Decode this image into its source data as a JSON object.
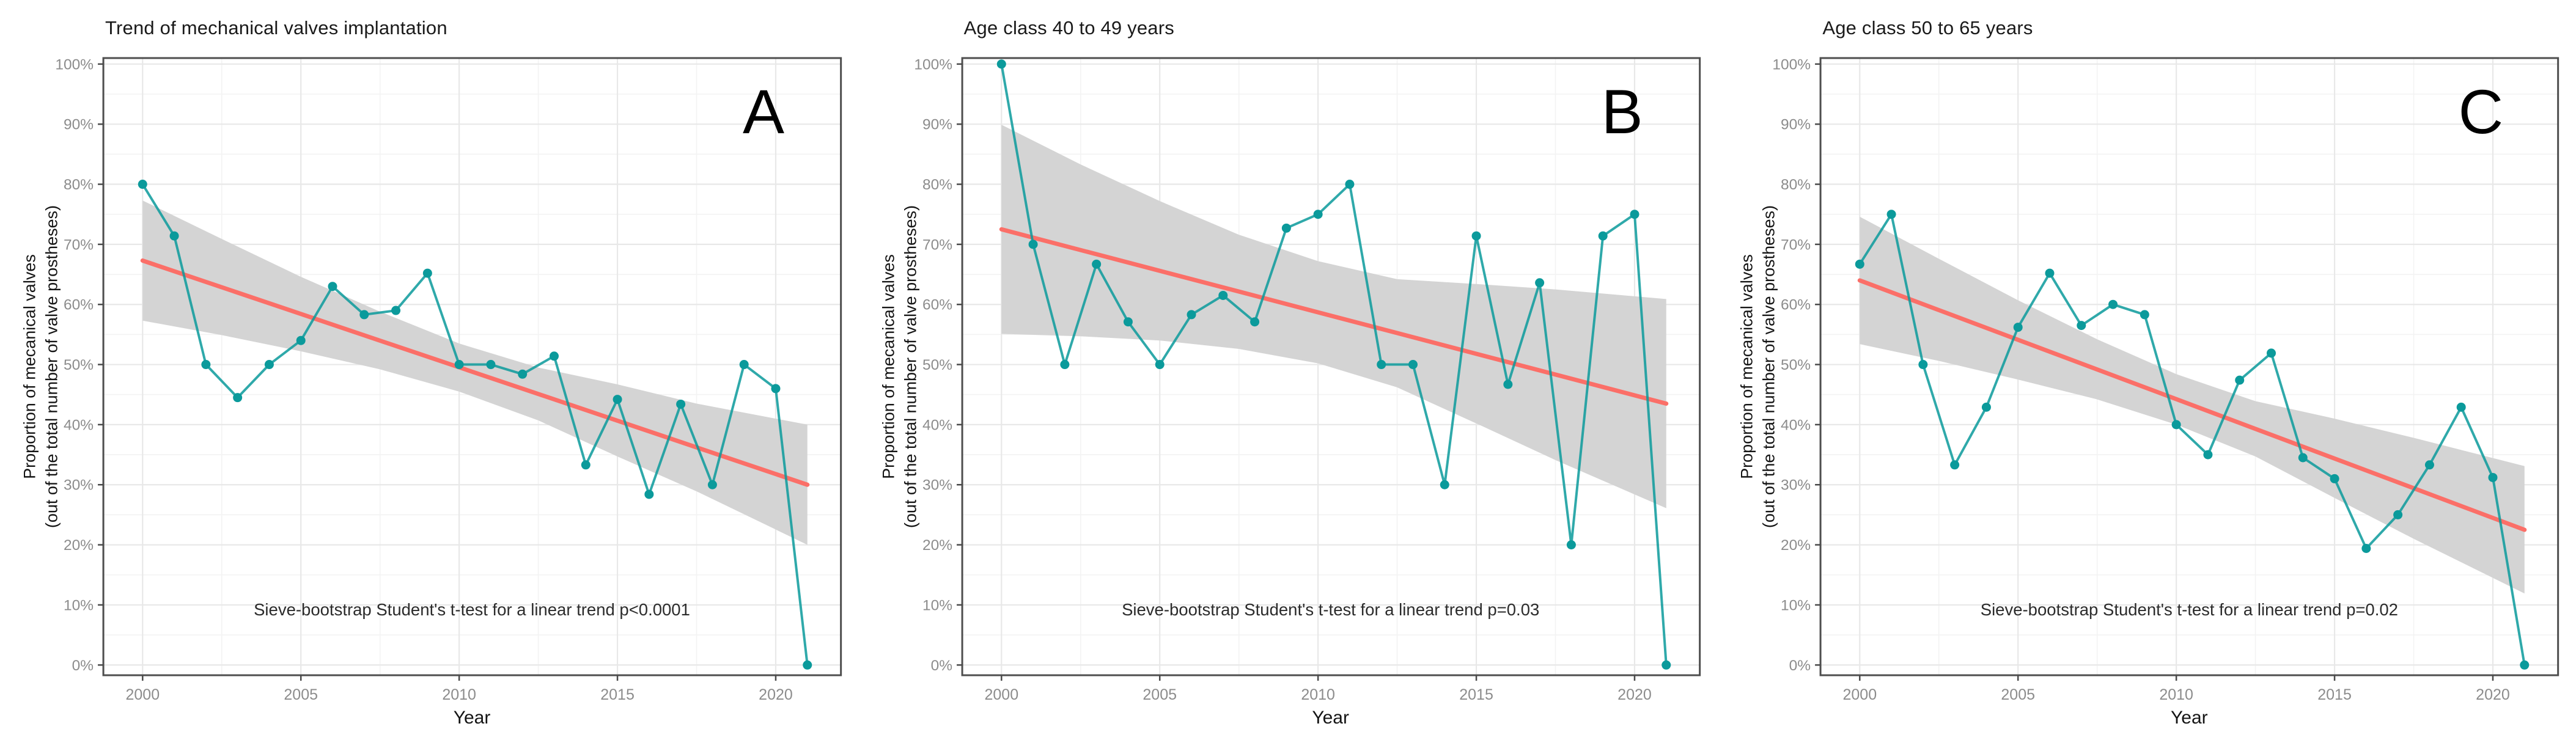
{
  "colors": {
    "series": "#0b9a9b",
    "trend": "#fb6f68",
    "band": "#d4d4d4",
    "grid_major": "#e8e8e8",
    "grid_minor": "#f3f3f3",
    "border": "#4e4e4e",
    "tick_mark": "#4a4a4a",
    "tick_label": "#8c8c8c",
    "text": "#1a1a1a",
    "background": "#ffffff"
  },
  "axes": {
    "y_title_line1": "Proportion of mecanical valves",
    "y_title_line2": "(out of the total number of valve prostheses)",
    "x_title": "Year",
    "y_tick_labels": [
      "0%",
      "10%",
      "20%",
      "30%",
      "40%",
      "50%",
      "60%",
      "70%",
      "80%",
      "90%",
      "100%"
    ],
    "y_tick_values": [
      0,
      10,
      20,
      30,
      40,
      50,
      60,
      70,
      80,
      90,
      100
    ],
    "x_tick_labels": [
      "2000",
      "2005",
      "2010",
      "2015",
      "2020"
    ],
    "x_tick_values": [
      2000,
      2005,
      2010,
      2015,
      2020
    ],
    "y_minor_ticks": [
      5,
      15,
      25,
      35,
      45,
      55,
      65,
      75,
      85,
      95
    ],
    "x_minor_ticks": [
      2002.5,
      2007.5,
      2012.5,
      2017.5
    ],
    "grid": "on",
    "legend": "none"
  },
  "chart_data": [
    {
      "type": "line",
      "panel_label": "A",
      "title": "Trend of mechanical valves implantation",
      "annotation": "Sieve-bootstrap Student's t-test for a linear trend p<0.0001",
      "xlabel": "Year",
      "ylabel": "Proportion of mecanical valves (out of the total number of valve prostheses)",
      "xlim": [
        2000,
        2021
      ],
      "ylim": [
        0,
        100
      ],
      "x": [
        2000,
        2001,
        2002,
        2003,
        2004,
        2005,
        2006,
        2007,
        2008,
        2009,
        2010,
        2011,
        2012,
        2013,
        2014,
        2015,
        2016,
        2017,
        2018,
        2019,
        2020,
        2021
      ],
      "values": [
        80,
        71.4,
        50,
        44.5,
        50,
        54,
        63,
        58.3,
        59,
        65.2,
        50,
        50,
        48.4,
        51.4,
        33.3,
        44.2,
        28.4,
        43.4,
        30,
        50,
        46,
        0
      ],
      "trend_line": {
        "x": [
          2000,
          2021
        ],
        "y": [
          67.3,
          30
        ]
      },
      "ci_band": {
        "x": [
          2000,
          2002.5,
          2005,
          2007.5,
          2010,
          2012.5,
          2015,
          2017.5,
          2021
        ],
        "upper": [
          77.3,
          70.9,
          64.6,
          58.8,
          53.5,
          49.5,
          46.7,
          43.5,
          40
        ],
        "lower": [
          57.3,
          54.9,
          52.2,
          49.2,
          45.5,
          40.7,
          34.7,
          28.9,
          20
        ]
      }
    },
    {
      "type": "line",
      "panel_label": "B",
      "title": "Age class 40 to 49 years",
      "annotation": "Sieve-bootstrap Student's t-test for a linear trend p=0.03",
      "xlabel": "Year",
      "ylabel": "Proportion of mecanical valves (out of the total number of valve prostheses)",
      "xlim": [
        2000,
        2021
      ],
      "ylim": [
        0,
        100
      ],
      "x": [
        2000,
        2001,
        2002,
        2003,
        2004,
        2005,
        2006,
        2007,
        2008,
        2009,
        2010,
        2011,
        2012,
        2013,
        2014,
        2015,
        2016,
        2017,
        2018,
        2019,
        2020,
        2021
      ],
      "values": [
        100,
        70,
        50,
        66.7,
        57.1,
        50,
        58.3,
        61.5,
        57.1,
        72.7,
        75,
        80,
        50,
        50,
        30,
        71.4,
        46.7,
        63.6,
        20,
        71.4,
        75,
        0
      ],
      "trend_line": {
        "x": [
          2000,
          2021
        ],
        "y": [
          72.5,
          43.5
        ]
      },
      "ci_band": {
        "x": [
          2000,
          2002.5,
          2005,
          2007.5,
          2010,
          2012.5,
          2015,
          2017.5,
          2021
        ],
        "upper": [
          89.9,
          83.3,
          77.2,
          71.6,
          67.2,
          64.2,
          63.4,
          62.5,
          60.9
        ],
        "lower": [
          55.1,
          54.7,
          54,
          52.6,
          50.2,
          46.2,
          40.2,
          34.1,
          26.1
        ]
      }
    },
    {
      "type": "line",
      "panel_label": "C",
      "title": "Age class 50 to 65 years",
      "annotation": "Sieve-bootstrap Student's t-test for a linear trend p=0.02",
      "xlabel": "Year",
      "ylabel": "Proportion of mecanical valves (out of the total number of valve prostheses)",
      "xlim": [
        2000,
        2021
      ],
      "ylim": [
        0,
        100
      ],
      "x": [
        2000,
        2001,
        2002,
        2003,
        2004,
        2005,
        2006,
        2007,
        2008,
        2009,
        2010,
        2011,
        2012,
        2013,
        2014,
        2015,
        2016,
        2017,
        2018,
        2019,
        2020,
        2021
      ],
      "values": [
        66.7,
        75,
        50,
        33.3,
        42.9,
        56.2,
        65.2,
        56.5,
        60,
        58.3,
        40,
        35,
        47.4,
        51.9,
        34.5,
        31,
        19.4,
        25,
        33.3,
        42.9,
        31.2,
        0
      ],
      "trend_line": {
        "x": [
          2000,
          2021
        ],
        "y": [
          64,
          22.5
        ]
      },
      "ci_band": {
        "x": [
          2000,
          2002.5,
          2005,
          2007.5,
          2010,
          2012.5,
          2015,
          2017.5,
          2021
        ],
        "upper": [
          74.6,
          67.6,
          60.7,
          54.2,
          48.4,
          43.9,
          41,
          37.8,
          33.1
        ],
        "lower": [
          53.4,
          50.6,
          47.5,
          44.2,
          40,
          34.7,
          27.8,
          21,
          11.9
        ]
      }
    }
  ]
}
